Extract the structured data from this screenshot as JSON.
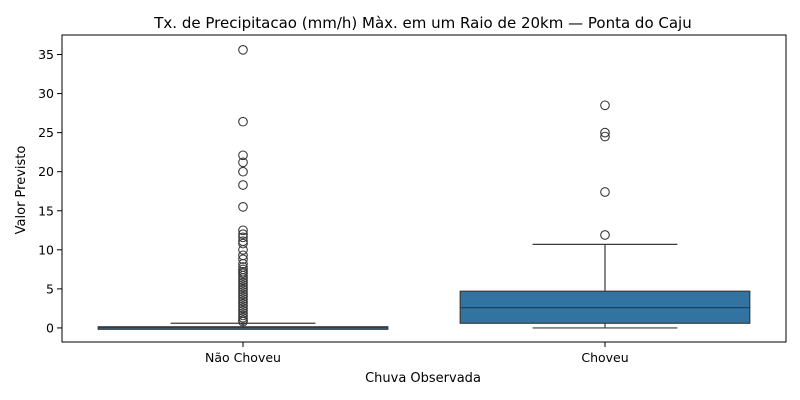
{
  "chart_data": {
    "type": "box",
    "title": "Tx. de Precipitacao (mm/h) Màx. em um Raio de 20km — Ponta do Caju",
    "xlabel": "Chuva Observada",
    "ylabel": "Valor Previsto",
    "categories": [
      "Não Choveu",
      "Choveu"
    ],
    "ylim": [
      -1.8,
      37.5
    ],
    "yticks": [
      0,
      5,
      10,
      15,
      20,
      25,
      30,
      35
    ],
    "grid": false,
    "colors": {
      "box": "#3274a1",
      "line": "#3a3a3a"
    },
    "boxes": [
      {
        "category": "Não Choveu",
        "whisker_low": 0,
        "q1": 0,
        "median": 0.05,
        "q3": 0.15,
        "whisker_high": 0.6,
        "outliers": [
          35.6,
          26.4,
          22.1,
          21.2,
          20.0,
          18.3,
          15.5,
          12.5,
          12.0,
          11.6,
          11.1,
          10.8,
          10.0,
          9.3,
          8.8,
          8.2,
          7.8,
          7.5,
          7.2,
          7.0,
          6.7,
          6.4,
          6.1,
          5.8,
          5.5,
          5.2,
          4.9,
          4.6,
          4.3,
          4.0,
          3.7,
          3.4,
          3.1,
          2.8,
          2.5,
          2.2,
          1.9,
          1.6,
          1.3,
          1.0,
          0.8
        ]
      },
      {
        "category": "Choveu",
        "whisker_low": 0,
        "q1": 0.6,
        "median": 2.6,
        "q3": 4.7,
        "whisker_high": 10.7,
        "outliers": [
          28.5,
          25.0,
          24.5,
          17.4,
          11.9
        ]
      }
    ]
  }
}
